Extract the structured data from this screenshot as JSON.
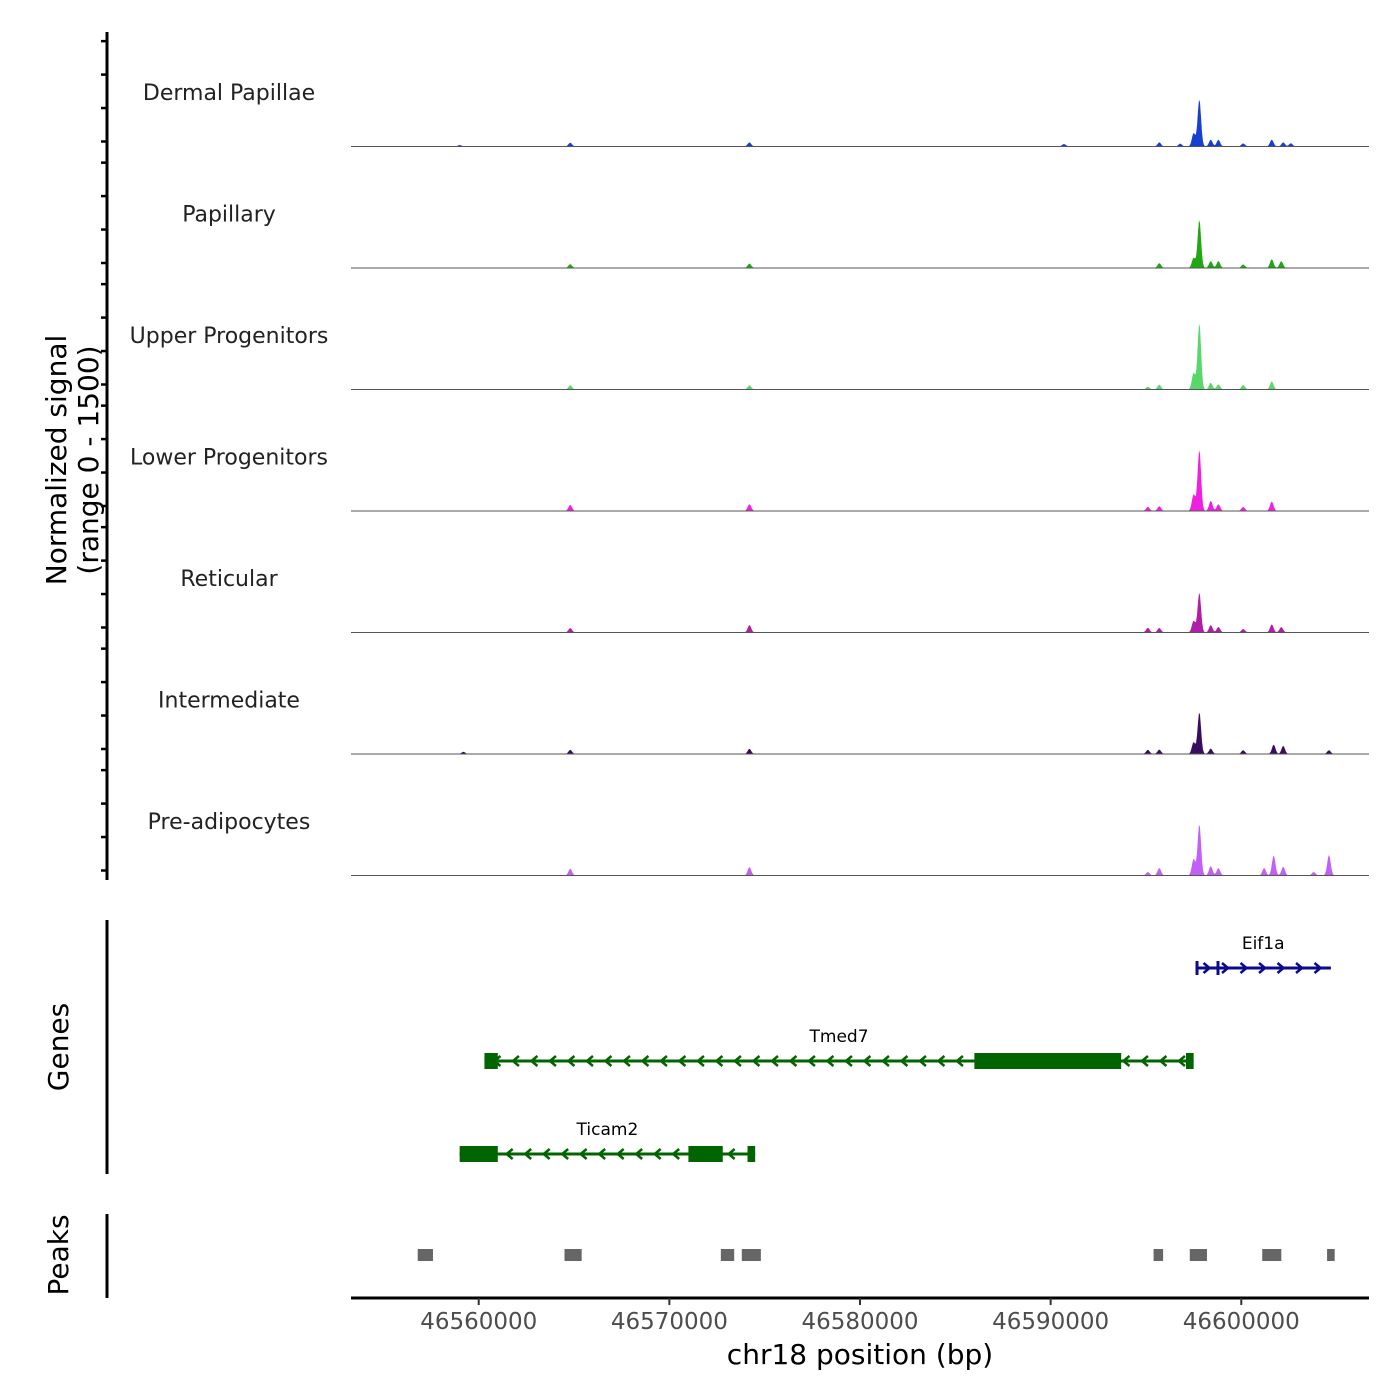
{
  "chart_data": {
    "type": "area",
    "chromosome": "chr18",
    "xlabel": "chr18 position (bp)",
    "ylabel_line1": "Normalized signal",
    "ylabel_line2": "(range 0 - 1500)",
    "xlim": [
      46553300,
      46606700
    ],
    "ylim": [
      0,
      1500
    ],
    "x_ticks": [
      46560000,
      46570000,
      46580000,
      46590000,
      46600000
    ],
    "x_tick_labels": [
      "46560000",
      "46570000",
      "46580000",
      "46590000",
      "46600000"
    ],
    "tracks": [
      {
        "name": "Dermal Papillae",
        "color": "#1840d0",
        "peaks": [
          [
            46559000,
            40
          ],
          [
            46564800,
            110
          ],
          [
            46574200,
            120
          ],
          [
            46590700,
            70
          ],
          [
            46595700,
            120
          ],
          [
            46596800,
            80
          ],
          [
            46597500,
            400
          ],
          [
            46597800,
            1420
          ],
          [
            46598400,
            200
          ],
          [
            46598800,
            200
          ],
          [
            46600100,
            90
          ],
          [
            46601600,
            200
          ],
          [
            46602200,
            120
          ],
          [
            46602600,
            90
          ]
        ]
      },
      {
        "name": "Papillary",
        "color": "#1fa812",
        "peaks": [
          [
            46564800,
            110
          ],
          [
            46574200,
            130
          ],
          [
            46595700,
            140
          ],
          [
            46597500,
            300
          ],
          [
            46597800,
            1450
          ],
          [
            46598400,
            200
          ],
          [
            46598800,
            200
          ],
          [
            46600100,
            100
          ],
          [
            46601600,
            260
          ],
          [
            46602100,
            200
          ]
        ]
      },
      {
        "name": "Upper Progenitors",
        "color": "#58d86a",
        "peaks": [
          [
            46564800,
            120
          ],
          [
            46574200,
            120
          ],
          [
            46595100,
            80
          ],
          [
            46595700,
            140
          ],
          [
            46597500,
            500
          ],
          [
            46597800,
            2000
          ],
          [
            46598400,
            200
          ],
          [
            46598800,
            150
          ],
          [
            46600100,
            130
          ],
          [
            46601600,
            240
          ]
        ]
      },
      {
        "name": "Lower Progenitors",
        "color": "#f020e0",
        "peaks": [
          [
            46564800,
            180
          ],
          [
            46574200,
            200
          ],
          [
            46595100,
            120
          ],
          [
            46595700,
            140
          ],
          [
            46597500,
            500
          ],
          [
            46597800,
            1850
          ],
          [
            46598400,
            300
          ],
          [
            46598800,
            200
          ],
          [
            46600100,
            120
          ],
          [
            46601600,
            280
          ]
        ]
      },
      {
        "name": "Reticular",
        "color": "#b01ea8",
        "peaks": [
          [
            46564800,
            130
          ],
          [
            46574200,
            220
          ],
          [
            46595100,
            140
          ],
          [
            46595700,
            130
          ],
          [
            46597500,
            350
          ],
          [
            46597800,
            1200
          ],
          [
            46598400,
            220
          ],
          [
            46598800,
            160
          ],
          [
            46600100,
            100
          ],
          [
            46601600,
            240
          ],
          [
            46602100,
            160
          ]
        ]
      },
      {
        "name": "Intermediate",
        "color": "#3a0c5e",
        "peaks": [
          [
            46559200,
            60
          ],
          [
            46564800,
            120
          ],
          [
            46574200,
            150
          ],
          [
            46595100,
            120
          ],
          [
            46595700,
            130
          ],
          [
            46597500,
            350
          ],
          [
            46597800,
            1260
          ],
          [
            46598400,
            160
          ],
          [
            46600100,
            110
          ],
          [
            46601700,
            280
          ],
          [
            46602200,
            240
          ],
          [
            46604600,
            110
          ]
        ]
      },
      {
        "name": "Pre-adipocytes",
        "color": "#c060f4",
        "peaks": [
          [
            46564800,
            200
          ],
          [
            46574200,
            250
          ],
          [
            46595100,
            100
          ],
          [
            46595700,
            220
          ],
          [
            46597500,
            500
          ],
          [
            46597800,
            1550
          ],
          [
            46598400,
            280
          ],
          [
            46598800,
            220
          ],
          [
            46601200,
            220
          ],
          [
            46601700,
            600
          ],
          [
            46602200,
            260
          ],
          [
            46603800,
            100
          ],
          [
            46604600,
            620
          ]
        ]
      }
    ],
    "genes": [
      {
        "name": "Eif1a",
        "strand": "+",
        "color": "#0a0a8c",
        "start": 46597600,
        "end": 46604700,
        "thick": [],
        "thin_exons": [
          [
            46597600,
            46597750
          ],
          [
            46598700,
            46598850
          ]
        ]
      },
      {
        "name": "Tmed7",
        "strand": "-",
        "color": "#006400",
        "start": 46560300,
        "end": 46597500,
        "thick": [
          [
            46560300,
            46561000
          ],
          [
            46586000,
            46593700
          ],
          [
            46597100,
            46597500
          ]
        ],
        "thin_exons": []
      },
      {
        "name": "Ticam2",
        "strand": "-",
        "color": "#006400",
        "start": 46559000,
        "end": 46574500,
        "thick": [
          [
            46559000,
            46561000
          ],
          [
            46571000,
            46572800
          ],
          [
            46574100,
            46574500
          ]
        ],
        "thin_exons": []
      }
    ],
    "peak_regions": [
      [
        46556800,
        46557600
      ],
      [
        46564500,
        46565400
      ],
      [
        46572700,
        46573400
      ],
      [
        46573800,
        46574800
      ],
      [
        46595400,
        46595900
      ],
      [
        46597300,
        46598200
      ],
      [
        46601100,
        46602100
      ],
      [
        46604500,
        46604900
      ]
    ],
    "peak_color": "#666666",
    "panel_titles": [
      "Genes",
      "Peaks"
    ]
  }
}
